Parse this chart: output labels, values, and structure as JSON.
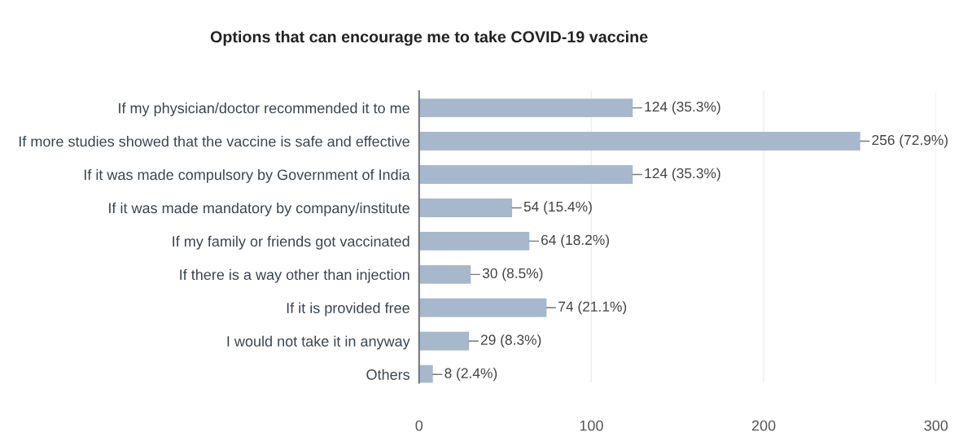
{
  "chart_data": {
    "type": "bar",
    "orientation": "horizontal",
    "title": "Options that can encourage me to take COVID-19 vaccine",
    "categories": [
      "If my physician/doctor recommended it to me",
      "If more studies showed that the vaccine is safe and effective",
      "If it was made compulsory by Government of India",
      "If it was made mandatory by company/institute",
      "If my family or friends got vaccinated",
      "If there is a way other than injection",
      "If it is provided free",
      "I would not take it in anyway",
      "Others"
    ],
    "values": [
      124,
      256,
      124,
      54,
      64,
      30,
      74,
      29,
      8
    ],
    "value_labels": [
      "124 (35.3%)",
      "256 (72.9%)",
      "124 (35.3%)",
      "54 (15.4%)",
      "64 (18.2%)",
      "30 (8.5%)",
      "74 (21.1%)",
      "29 (8.3%)",
      "8 (2.4%)"
    ],
    "color": "#a7b8cc",
    "xlim": [
      0,
      300
    ],
    "xticks": [
      0,
      100,
      200,
      300
    ],
    "grid": "x"
  }
}
